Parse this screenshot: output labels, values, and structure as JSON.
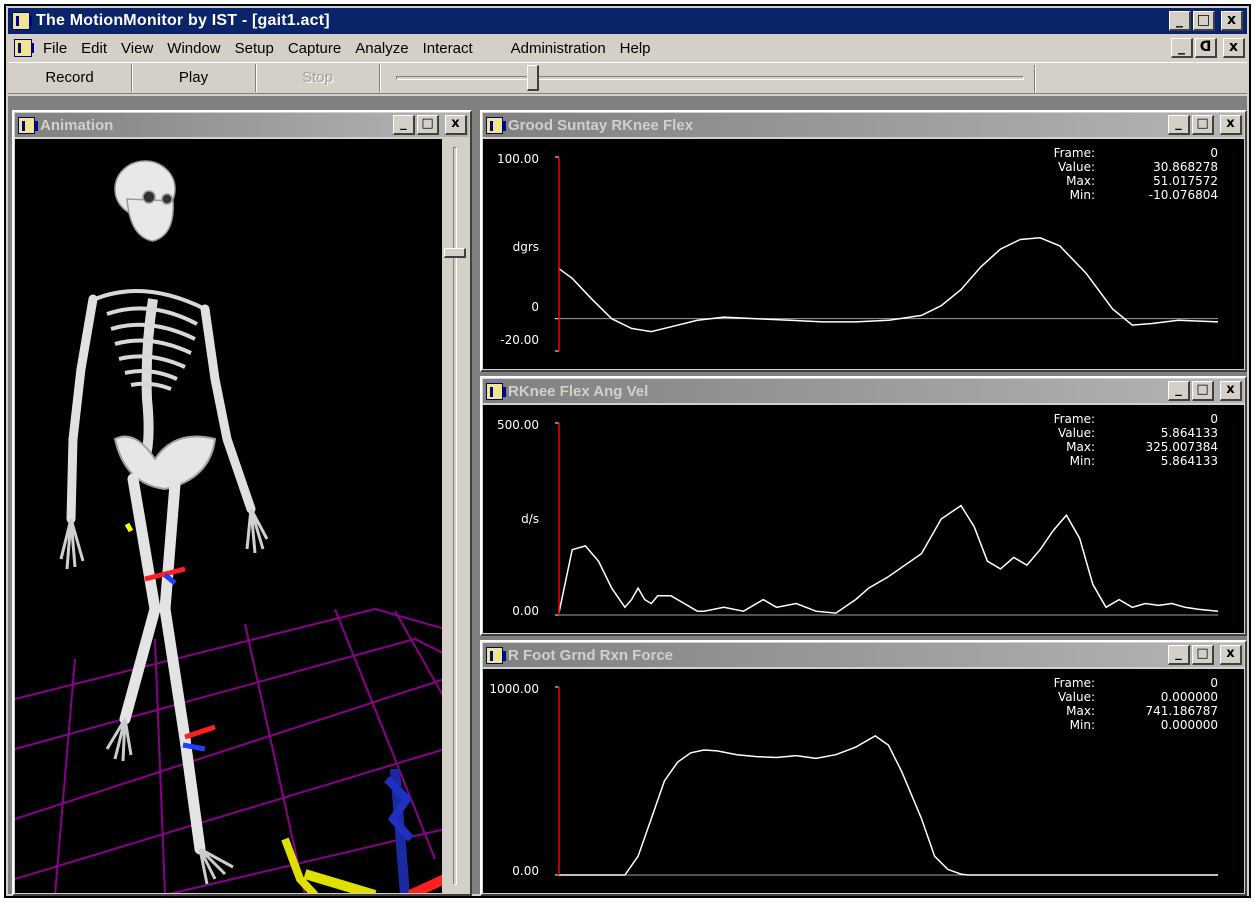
{
  "app": {
    "title": "The MotionMonitor by IST - [gait1.act]",
    "caption_buttons": [
      "_",
      "□",
      "x"
    ],
    "mdi_buttons": [
      "_",
      "ᗡ",
      "x"
    ]
  },
  "menu": [
    "File",
    "Edit",
    "View",
    "Window",
    "Setup",
    "Capture",
    "Analyze",
    "Interact",
    "Administration",
    "Help"
  ],
  "toolbar": {
    "record_label": "Record",
    "play_label": "Play",
    "stop_label": "Stop"
  },
  "colors": {
    "title_active": "#0a246a",
    "title_inactive": "#808080",
    "cursor_line": "#ff0000",
    "trace": "#ffffff",
    "grid": "#8b008b"
  },
  "animation": {
    "title": "Animation"
  },
  "graphs": [
    {
      "title": "Grood Suntay RKnee Flex",
      "ymax_label": "100.00",
      "zero_label": "0",
      "ymin_label": "-20.00",
      "unit_label": "dgrs",
      "stats": {
        "labels": [
          "Frame:",
          "Value:",
          "Max:",
          "Min:"
        ],
        "values": [
          "0",
          "30.868278",
          "51.017572",
          "-10.076804"
        ]
      },
      "chart_data": {
        "type": "line",
        "ylim": [
          -20,
          100
        ],
        "x": [
          0,
          2,
          5,
          8,
          11,
          14,
          17,
          21,
          25,
          30,
          35,
          40,
          45,
          50,
          55,
          58,
          61,
          64,
          67,
          70,
          73,
          76,
          80,
          84,
          87,
          90,
          94,
          100
        ],
        "y": [
          30.9,
          25,
          12,
          0,
          -6,
          -8,
          -5,
          -1,
          1,
          0,
          -1,
          -2,
          -2,
          -1,
          2,
          8,
          18,
          32,
          43,
          49,
          50,
          45,
          28,
          6,
          -4,
          -3,
          -1,
          -2
        ]
      }
    },
    {
      "title": "RKnee Flex Ang Vel",
      "ymax_label": "500.00",
      "zero_label": "0.00",
      "unit_label": "d/s",
      "stats": {
        "labels": [
          "Frame:",
          "Value:",
          "Max:",
          "Min:"
        ],
        "values": [
          "0",
          "5.864133",
          "325.007384",
          "5.864133"
        ]
      },
      "chart_data": {
        "type": "line",
        "ylim": [
          0,
          500
        ],
        "x": [
          0,
          2,
          4,
          6,
          8,
          10,
          11,
          12,
          13,
          14,
          15,
          17,
          19,
          21,
          22,
          25,
          28,
          31,
          33,
          36,
          39,
          42,
          45,
          47,
          50,
          55,
          58,
          61,
          63,
          65,
          67,
          69,
          71,
          73,
          75,
          77,
          79,
          81,
          83,
          85,
          87,
          89,
          91,
          93,
          95,
          97,
          100
        ],
        "y": [
          5.9,
          170,
          180,
          140,
          70,
          20,
          40,
          70,
          40,
          30,
          50,
          50,
          30,
          10,
          10,
          20,
          10,
          40,
          20,
          30,
          10,
          5,
          40,
          70,
          100,
          160,
          250,
          285,
          230,
          140,
          120,
          150,
          130,
          170,
          220,
          260,
          200,
          80,
          20,
          40,
          20,
          30,
          25,
          30,
          20,
          15,
          10
        ]
      }
    },
    {
      "title": "R Foot Grnd Rxn Force",
      "ymax_label": "1000.00",
      "zero_label": "0.00",
      "stats": {
        "labels": [
          "Frame:",
          "Value:",
          "Max:",
          "Min:"
        ],
        "values": [
          "0",
          "0.000000",
          "741.186787",
          "0.000000"
        ]
      },
      "chart_data": {
        "type": "line",
        "ylim": [
          0,
          1000
        ],
        "x": [
          0,
          10,
          12,
          14,
          16,
          18,
          20,
          22,
          24,
          27,
          30,
          33,
          36,
          39,
          42,
          45,
          48,
          50,
          52,
          55,
          57,
          59,
          61,
          62,
          64,
          66,
          100
        ],
        "y": [
          0,
          0,
          100,
          300,
          500,
          600,
          650,
          665,
          660,
          640,
          630,
          625,
          635,
          620,
          640,
          680,
          740,
          690,
          550,
          300,
          100,
          30,
          5,
          0,
          0,
          0,
          0
        ]
      }
    }
  ]
}
